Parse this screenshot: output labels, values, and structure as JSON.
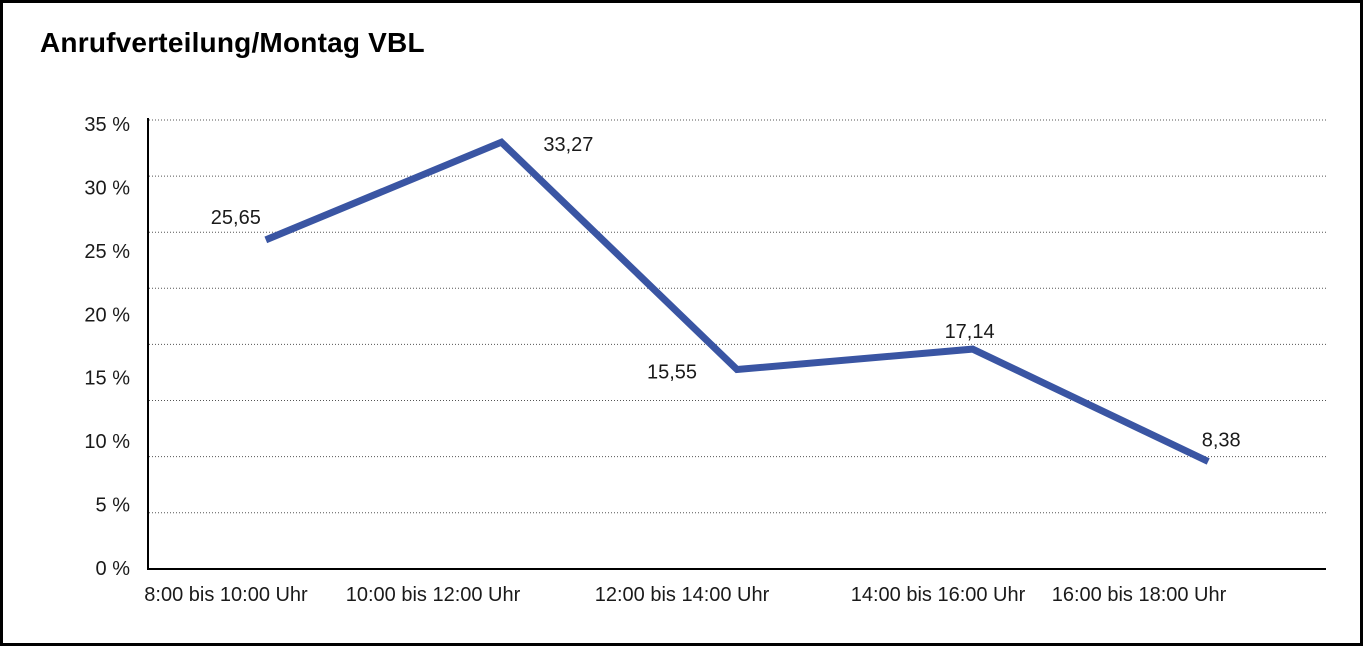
{
  "title": "Anrufverteilung/Montag VBL",
  "chart_data": {
    "type": "line",
    "title": "Anrufverteilung/Montag VBL",
    "categories": [
      "8:00 bis 10:00 Uhr",
      "10:00 bis 12:00 Uhr",
      "12:00 bis 14:00 Uhr",
      "14:00 bis 16:00 Uhr",
      "16:00 bis 18:00 Uhr"
    ],
    "values": [
      25.65,
      33.27,
      15.55,
      17.14,
      8.38
    ],
    "value_labels": [
      "25,65",
      "33,27",
      "15,55",
      "17,14",
      "8,38"
    ],
    "y_tick_labels": [
      "35 %",
      "30 %",
      "25 %",
      "20 %",
      "15 %",
      "10 %",
      "5 %",
      "0 %"
    ],
    "ylim": [
      0,
      35
    ],
    "y_step": 5,
    "xlabel": "",
    "ylabel": "",
    "legend": "none",
    "grid": "horizontal-dotted",
    "line_color": "#3A55A3",
    "axis_color": "#000000",
    "gridline_color": "#555555",
    "text_color": "#1A1A1A",
    "background": "#FFFFFF",
    "border_color": "#000000"
  }
}
